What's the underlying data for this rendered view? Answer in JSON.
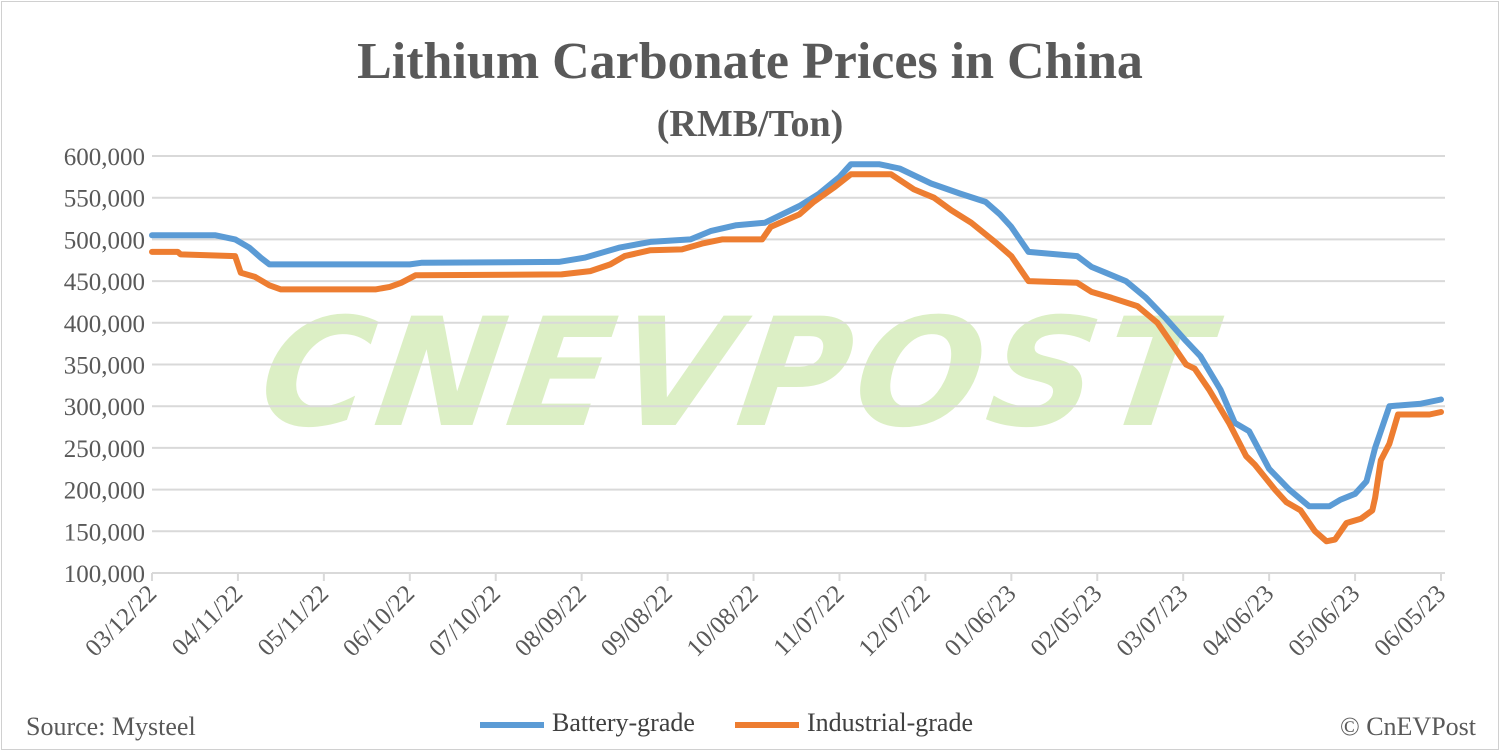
{
  "chart_data": {
    "type": "line",
    "title": "Lithium Carbonate Prices in China",
    "subtitle": "(RMB/Ton)",
    "xlabel": "",
    "ylabel": "",
    "ylim": [
      100000,
      600000
    ],
    "yticks": [
      100000,
      150000,
      200000,
      250000,
      300000,
      350000,
      400000,
      450000,
      500000,
      550000,
      600000
    ],
    "ytick_labels": [
      "100,000",
      "150,000",
      "200,000",
      "250,000",
      "300,000",
      "350,000",
      "400,000",
      "450,000",
      "500,000",
      "550,000",
      "600,000"
    ],
    "xlim": [
      "03/12/22",
      "06/05/23"
    ],
    "xtick_labels": [
      "03/12/22",
      "04/11/22",
      "05/11/22",
      "06/10/22",
      "07/10/22",
      "08/09/22",
      "09/08/22",
      "10/08/22",
      "11/07/22",
      "12/07/22",
      "01/06/23",
      "02/05/23",
      "03/07/23",
      "04/06/23",
      "05/06/23",
      "06/05/23"
    ],
    "grid": true,
    "legend_position": "bottom",
    "series": [
      {
        "name": "Battery-grade",
        "color": "#5B9BD5",
        "points": [
          [
            "03/12/22",
            505000
          ],
          [
            "04/03/22",
            505000
          ],
          [
            "04/10/22",
            500000
          ],
          [
            "04/15/22",
            490000
          ],
          [
            "04/19/22",
            478000
          ],
          [
            "04/22/22",
            470000
          ],
          [
            "06/10/22",
            470000
          ],
          [
            "06/14/22",
            472000
          ],
          [
            "08/01/22",
            473000
          ],
          [
            "08/10/22",
            478000
          ],
          [
            "08/22/22",
            490000
          ],
          [
            "09/02/22",
            497000
          ],
          [
            "09/16/22",
            500000
          ],
          [
            "09/23/22",
            510000
          ],
          [
            "10/02/22",
            517000
          ],
          [
            "10/12/22",
            520000
          ],
          [
            "10/24/22",
            540000
          ],
          [
            "10/31/22",
            555000
          ],
          [
            "11/07/22",
            575000
          ],
          [
            "11/11/22",
            590000
          ],
          [
            "11/21/22",
            590000
          ],
          [
            "11/28/22",
            585000
          ],
          [
            "12/09/22",
            567000
          ],
          [
            "12/19/22",
            555000
          ],
          [
            "12/28/22",
            545000
          ],
          [
            "01/02/23",
            530000
          ],
          [
            "01/06/23",
            515000
          ],
          [
            "01/12/23",
            485000
          ],
          [
            "01/29/23",
            480000
          ],
          [
            "02/03/23",
            467000
          ],
          [
            "02/08/23",
            460000
          ],
          [
            "02/15/23",
            450000
          ],
          [
            "02/22/23",
            430000
          ],
          [
            "03/01/23",
            405000
          ],
          [
            "03/08/23",
            378000
          ],
          [
            "03/13/23",
            360000
          ],
          [
            "03/20/23",
            320000
          ],
          [
            "03/25/23",
            280000
          ],
          [
            "03/30/23",
            270000
          ],
          [
            "04/06/23",
            225000
          ],
          [
            "04/13/23",
            200000
          ],
          [
            "04/20/23",
            180000
          ],
          [
            "04/27/23",
            180000
          ],
          [
            "05/01/23",
            188000
          ],
          [
            "05/06/23",
            195000
          ],
          [
            "05/10/23",
            210000
          ],
          [
            "05/13/23",
            250000
          ],
          [
            "05/18/23",
            300000
          ],
          [
            "05/29/23",
            303000
          ],
          [
            "06/05/23",
            308000
          ]
        ]
      },
      {
        "name": "Industrial-grade",
        "color": "#ED7D31",
        "points": [
          [
            "03/12/22",
            485000
          ],
          [
            "03/21/22",
            485000
          ],
          [
            "03/22/22",
            482000
          ],
          [
            "04/10/22",
            480000
          ],
          [
            "04/12/22",
            460000
          ],
          [
            "04/17/22",
            455000
          ],
          [
            "04/22/22",
            445000
          ],
          [
            "04/26/22",
            440000
          ],
          [
            "05/29/22",
            440000
          ],
          [
            "06/03/22",
            443000
          ],
          [
            "06/07/22",
            448000
          ],
          [
            "06/12/22",
            457000
          ],
          [
            "08/02/22",
            458000
          ],
          [
            "08/12/22",
            462000
          ],
          [
            "08/19/22",
            470000
          ],
          [
            "08/24/22",
            480000
          ],
          [
            "09/02/22",
            487000
          ],
          [
            "09/13/22",
            488000
          ],
          [
            "09/20/22",
            495000
          ],
          [
            "09/27/22",
            500000
          ],
          [
            "10/11/22",
            500000
          ],
          [
            "10/14/22",
            515000
          ],
          [
            "10/24/22",
            530000
          ],
          [
            "10/29/22",
            545000
          ],
          [
            "11/05/22",
            562000
          ],
          [
            "11/11/22",
            578000
          ],
          [
            "11/25/22",
            578000
          ],
          [
            "12/03/22",
            560000
          ],
          [
            "12/10/22",
            550000
          ],
          [
            "12/16/22",
            535000
          ],
          [
            "12/23/22",
            520000
          ],
          [
            "01/01/23",
            495000
          ],
          [
            "01/06/23",
            480000
          ],
          [
            "01/12/23",
            450000
          ],
          [
            "01/29/23",
            448000
          ],
          [
            "02/03/23",
            437000
          ],
          [
            "02/10/23",
            430000
          ],
          [
            "02/19/23",
            420000
          ],
          [
            "02/26/23",
            400000
          ],
          [
            "03/02/23",
            380000
          ],
          [
            "03/08/23",
            350000
          ],
          [
            "03/11/23",
            345000
          ],
          [
            "03/16/23",
            320000
          ],
          [
            "03/23/23",
            280000
          ],
          [
            "03/29/23",
            240000
          ],
          [
            "04/01/23",
            230000
          ],
          [
            "04/08/23",
            200000
          ],
          [
            "04/12/23",
            185000
          ],
          [
            "04/17/23",
            175000
          ],
          [
            "04/22/23",
            150000
          ],
          [
            "04/26/23",
            138000
          ],
          [
            "04/29/23",
            140000
          ],
          [
            "05/03/23",
            160000
          ],
          [
            "05/08/23",
            165000
          ],
          [
            "05/12/23",
            175000
          ],
          [
            "05/13/23",
            190000
          ],
          [
            "05/15/23",
            235000
          ],
          [
            "05/18/23",
            255000
          ],
          [
            "05/21/23",
            290000
          ],
          [
            "06/01/23",
            290000
          ],
          [
            "06/05/23",
            293000
          ]
        ]
      }
    ]
  },
  "watermark": "CNEVPOST",
  "footer": {
    "source": "Source: Mysteel",
    "copyright": "© CnEVPost"
  }
}
